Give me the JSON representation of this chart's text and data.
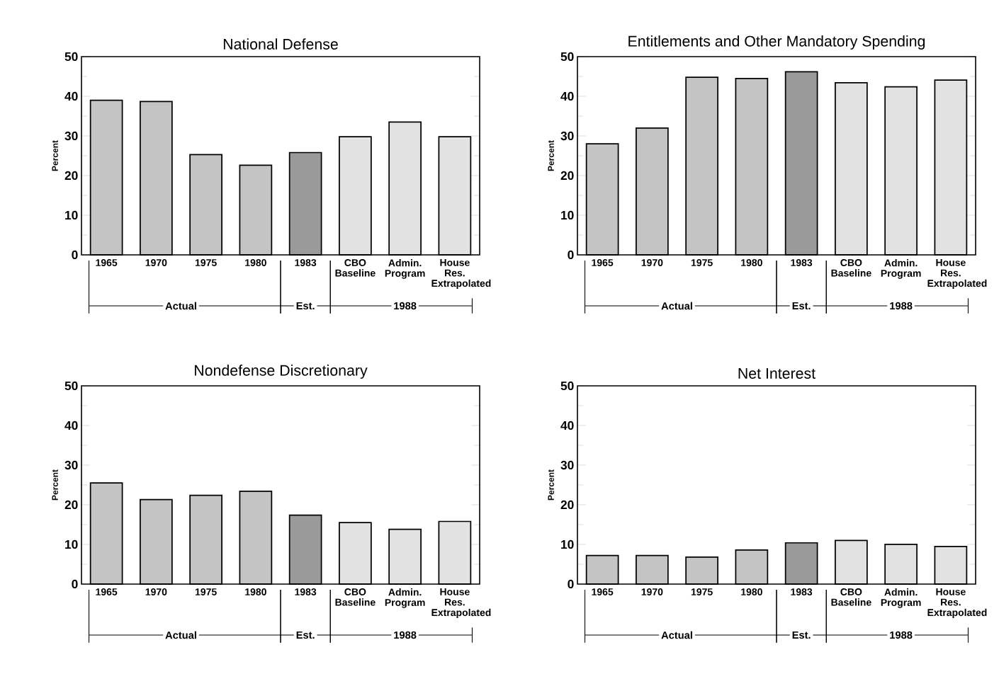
{
  "chart_data": [
    {
      "type": "bar",
      "title": "National Defense",
      "ylabel": "Percent",
      "categories": [
        "1965",
        "1970",
        "1975",
        "1980",
        "1983",
        "CBO Baseline",
        "Admin. Program",
        "House Res. Extrapolated"
      ],
      "ylim": [
        0,
        50
      ],
      "yticks": [
        0,
        10,
        20,
        30,
        40,
        50
      ],
      "values": [
        39,
        38.7,
        25.3,
        22.6,
        25.8,
        29.8,
        33.5,
        29.8
      ],
      "colors": [
        "#c4c4c4",
        "#c4c4c4",
        "#c4c4c4",
        "#c4c4c4",
        "#9a9a9a",
        "#e2e2e2",
        "#e2e2e2",
        "#e2e2e2"
      ],
      "annotations": [
        "Actual",
        "Est.",
        "1988"
      ]
    },
    {
      "type": "bar",
      "title": "Entitlements and Other Mandatory Spending",
      "ylabel": "Percent",
      "categories": [
        "1965",
        "1970",
        "1975",
        "1980",
        "1983",
        "CBO Baseline",
        "Admin. Program",
        "House Res. Extrapolated"
      ],
      "ylim": [
        0,
        50
      ],
      "yticks": [
        0,
        10,
        20,
        30,
        40,
        50
      ],
      "values": [
        28,
        32,
        44.8,
        44.5,
        46.2,
        43.4,
        42.4,
        44.1
      ],
      "colors": [
        "#c4c4c4",
        "#c4c4c4",
        "#c4c4c4",
        "#c4c4c4",
        "#9a9a9a",
        "#e2e2e2",
        "#e2e2e2",
        "#e2e2e2"
      ],
      "annotations": [
        "Actual",
        "Est.",
        "1988"
      ]
    },
    {
      "type": "bar",
      "title": "Nondefense Discretionary",
      "ylabel": "Percent",
      "categories": [
        "1965",
        "1970",
        "1975",
        "1980",
        "1983",
        "CBO Baseline",
        "Admin. Program",
        "House Res. Extrapolated"
      ],
      "ylim": [
        0,
        50
      ],
      "yticks": [
        0,
        10,
        20,
        30,
        40,
        50
      ],
      "values": [
        25.5,
        21.3,
        22.4,
        23.4,
        17.4,
        15.5,
        13.8,
        15.8
      ],
      "colors": [
        "#c4c4c4",
        "#c4c4c4",
        "#c4c4c4",
        "#c4c4c4",
        "#9a9a9a",
        "#e2e2e2",
        "#e2e2e2",
        "#e2e2e2"
      ],
      "annotations": [
        "Actual",
        "Est.",
        "1988"
      ]
    },
    {
      "type": "bar",
      "title": "Net Interest",
      "ylabel": "Percent",
      "categories": [
        "1965",
        "1970",
        "1975",
        "1980",
        "1983",
        "CBO Baseline",
        "Admin. Program",
        "House Res. Extrapolated"
      ],
      "ylim": [
        0,
        50
      ],
      "yticks": [
        0,
        10,
        20,
        30,
        40,
        50
      ],
      "values": [
        7.2,
        7.2,
        6.8,
        8.6,
        10.4,
        11,
        10,
        9.5
      ],
      "colors": [
        "#c4c4c4",
        "#c4c4c4",
        "#c4c4c4",
        "#c4c4c4",
        "#9a9a9a",
        "#e2e2e2",
        "#e2e2e2",
        "#e2e2e2"
      ],
      "annotations": [
        "Actual",
        "Est.",
        "1988"
      ]
    }
  ]
}
